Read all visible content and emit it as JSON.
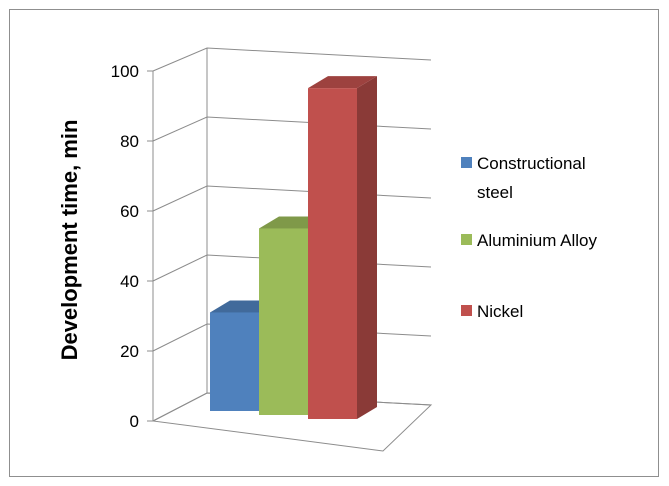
{
  "chart_data": {
    "type": "bar",
    "view": "3d-clustered-column",
    "categories": [
      ""
    ],
    "series": [
      {
        "name": "Constructional steel",
        "values": [
          28
        ],
        "color": "#4f81bd"
      },
      {
        "name": "Aluminium Alloy",
        "values": [
          53
        ],
        "color": "#9bbb59"
      },
      {
        "name": "Nickel",
        "values": [
          94
        ],
        "color": "#c0504d"
      }
    ],
    "title": "",
    "xlabel": "",
    "ylabel": "Development time, min",
    "ylim": [
      0,
      100
    ],
    "yticks": [
      "0",
      "20",
      "40",
      "60",
      "80",
      "100"
    ],
    "grid": true,
    "legend_position": "right",
    "legend_lines": [
      [
        "Constructional",
        "steel"
      ],
      [
        "Aluminium Alloy"
      ],
      [
        "Nickel"
      ]
    ]
  }
}
